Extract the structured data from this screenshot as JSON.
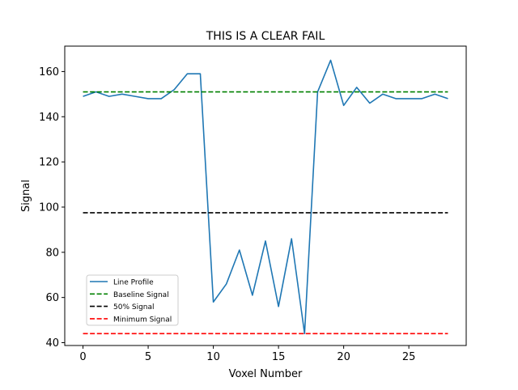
{
  "chart_data": {
    "type": "line",
    "title": "THIS IS A CLEAR FAIL",
    "xlabel": "Voxel Number",
    "ylabel": "Signal",
    "xlim": [
      -1.4,
      29.4
    ],
    "ylim": [
      38.75,
      171.25
    ],
    "x_ticks": [
      0,
      5,
      10,
      15,
      20,
      25
    ],
    "y_ticks": [
      40,
      60,
      80,
      100,
      120,
      140,
      160
    ],
    "grid": false,
    "legend_position": "lower-left",
    "series": [
      {
        "name": "Line Profile",
        "style": "solid",
        "color": "#1f77b4",
        "x": [
          0,
          1,
          2,
          3,
          4,
          5,
          6,
          7,
          8,
          9,
          10,
          11,
          12,
          13,
          14,
          15,
          16,
          17,
          18,
          19,
          20,
          21,
          22,
          23,
          24,
          25,
          26,
          27,
          28
        ],
        "values": [
          149,
          151,
          149,
          150,
          149,
          148,
          148,
          152,
          159,
          159,
          58,
          66,
          81,
          61,
          85,
          56,
          86,
          44,
          151,
          165,
          145,
          153,
          146,
          150,
          148,
          148,
          148,
          150,
          148
        ]
      },
      {
        "name": "Baseline Signal",
        "style": "dashed",
        "color": "#008000",
        "x": [
          0,
          28
        ],
        "values": [
          151,
          151
        ]
      },
      {
        "name": "50% Signal",
        "style": "dashed",
        "color": "#000000",
        "x": [
          0,
          28
        ],
        "values": [
          97.5,
          97.5
        ]
      },
      {
        "name": "Minimum Signal",
        "style": "dashed",
        "color": "#ff0000",
        "x": [
          0,
          28
        ],
        "values": [
          44,
          44
        ]
      }
    ]
  }
}
